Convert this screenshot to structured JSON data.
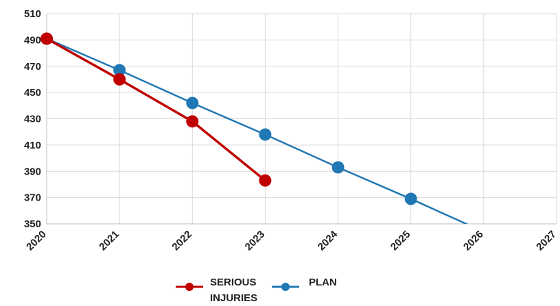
{
  "chart_data": {
    "type": "line",
    "title": "",
    "xlabel": "",
    "ylabel": "",
    "x_ticks": [
      "2020",
      "2021",
      "2022",
      "2023",
      "2024",
      "2025",
      "2026",
      "2027"
    ],
    "y_ticks": [
      350,
      370,
      390,
      410,
      430,
      450,
      470,
      490,
      510
    ],
    "xlim": [
      2020,
      2027
    ],
    "ylim": [
      350,
      510
    ],
    "grid": true,
    "legend_position": "bottom",
    "series": [
      {
        "name_lines": [
          "SERIOUS",
          "INJURIES"
        ],
        "color": "#c00000",
        "x": [
          2020,
          2021,
          2022,
          2023
        ],
        "y": [
          491,
          460,
          428,
          383
        ],
        "markers": true
      },
      {
        "name_lines": [
          "PLAN"
        ],
        "color": "#1f77b4",
        "x": [
          2020,
          2021,
          2022,
          2023,
          2024,
          2025,
          2026
        ],
        "y": [
          491,
          467,
          442,
          418,
          393,
          369,
          344
        ],
        "marker_x": [
          2020,
          2021,
          2022,
          2023,
          2024,
          2025
        ],
        "markers": true
      }
    ]
  }
}
